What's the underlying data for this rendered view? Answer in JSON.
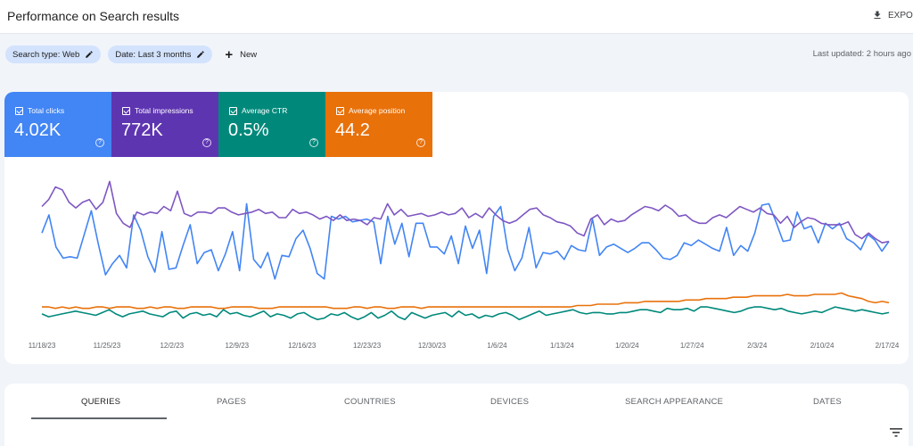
{
  "header": {
    "title": "Performance on Search results",
    "export_label": "EXPORT"
  },
  "filters": {
    "search_type": "Search type: Web",
    "date": "Date: Last 3 months",
    "new_label": "New",
    "last_updated": "Last updated: 2 hours ago"
  },
  "metrics": [
    {
      "label": "Total clicks",
      "value": "4.02K",
      "color": "#4285f4"
    },
    {
      "label": "Total impressions",
      "value": "772K",
      "color": "#673ab7"
    },
    {
      "label": "Average CTR",
      "value": "0.5%",
      "color": "#00897b"
    },
    {
      "label": "Average position",
      "value": "44.2",
      "color": "#e8710a"
    }
  ],
  "icons": {
    "edit": "edit-icon",
    "export": "download-icon",
    "plus": "plus-icon",
    "help": "help-icon",
    "checkbox": "checkbox-icon",
    "filter": "filter-icon"
  },
  "chart_data": {
    "type": "line",
    "x_ticks": [
      "11/18/23",
      "11/25/23",
      "12/2/23",
      "12/9/23",
      "12/16/23",
      "12/23/23",
      "12/30/23",
      "1/6/24",
      "1/13/24",
      "1/20/24",
      "1/27/24",
      "2/3/24",
      "2/10/24",
      "2/17/24"
    ],
    "grid": false,
    "legend": "top",
    "series": [
      {
        "name": "Total clicks",
        "color": "#4285f4",
        "values": [
          67,
          80,
          57,
          49,
          50,
          49,
          66,
          83,
          59,
          37,
          45,
          51,
          42,
          80,
          69,
          50,
          39,
          68,
          41,
          42,
          58,
          73,
          45,
          53,
          55,
          40,
          52,
          68,
          40,
          88,
          48,
          42,
          53,
          34,
          51,
          50,
          63,
          69,
          56,
          38,
          34,
          79,
          77,
          79,
          75,
          76,
          77,
          75,
          45,
          79,
          59,
          74,
          50,
          74,
          74,
          57,
          57,
          52,
          65,
          45,
          72,
          56,
          69,
          38,
          79,
          86,
          55,
          40,
          49,
          71,
          42,
          53,
          52,
          54,
          48,
          58,
          55,
          54,
          77,
          51,
          57,
          59,
          56,
          53,
          56,
          60,
          60,
          55,
          49,
          48,
          51,
          60,
          58,
          62,
          59,
          56,
          54,
          71,
          51,
          58,
          54,
          67,
          87,
          88,
          75,
          61,
          62,
          82,
          70,
          72,
          60,
          74,
          70,
          74,
          63,
          60,
          55,
          66,
          62,
          54,
          61
        ]
      },
      {
        "name": "Total impressions",
        "color": "#7e57c2",
        "values": [
          86,
          91,
          100,
          98,
          89,
          85,
          89,
          91,
          84,
          89,
          104,
          81,
          74,
          71,
          82,
          80,
          82,
          81,
          86,
          83,
          97,
          81,
          79,
          82,
          82,
          81,
          85,
          85,
          82,
          80,
          81,
          82,
          84,
          81,
          82,
          78,
          78,
          84,
          81,
          82,
          80,
          77,
          79,
          76,
          80,
          76,
          77,
          76,
          73,
          78,
          77,
          88,
          80,
          84,
          79,
          80,
          81,
          79,
          80,
          82,
          80,
          81,
          85,
          78,
          81,
          78,
          85,
          80,
          76,
          74,
          76,
          80,
          84,
          85,
          80,
          78,
          75,
          74,
          72,
          67,
          65,
          77,
          80,
          73,
          77,
          75,
          76,
          80,
          83,
          86,
          85,
          83,
          87,
          84,
          79,
          80,
          76,
          74,
          74,
          78,
          80,
          78,
          82,
          86,
          84,
          82,
          85,
          81,
          80,
          74,
          79,
          71,
          75,
          78,
          77,
          74,
          73,
          73,
          73,
          75,
          66,
          63,
          67,
          63,
          60,
          61
        ]
      },
      {
        "name": "Average CTR",
        "color": "#00897b",
        "values": [
          9,
          7,
          8,
          9,
          10,
          11,
          10,
          9,
          8,
          10,
          12,
          9,
          7,
          9,
          10,
          11,
          9,
          8,
          7,
          10,
          11,
          6,
          9,
          10,
          8,
          9,
          7,
          12,
          9,
          10,
          8,
          7,
          9,
          11,
          7,
          9,
          8,
          6,
          9,
          10,
          7,
          5,
          6,
          9,
          8,
          10,
          7,
          5,
          7,
          10,
          6,
          8,
          11,
          7,
          5,
          10,
          8,
          6,
          8,
          9,
          10,
          7,
          11,
          8,
          9,
          6,
          8,
          7,
          9,
          10,
          8,
          5,
          7,
          9,
          11,
          8,
          9,
          10,
          11,
          12,
          10,
          9,
          10,
          10,
          9,
          9,
          10,
          10,
          11,
          12,
          12,
          11,
          10,
          13,
          12,
          12,
          13,
          11,
          14,
          14,
          13,
          12,
          11,
          10,
          11,
          13,
          14,
          14,
          13,
          12,
          13,
          11,
          10,
          9,
          10,
          11,
          10,
          12,
          14,
          13,
          12,
          11,
          12,
          11,
          10,
          9,
          10
        ]
      },
      {
        "name": "Average position",
        "color": "#e8710a",
        "values": [
          14,
          14,
          13,
          14,
          13,
          14,
          13,
          13,
          14,
          14,
          13,
          14,
          14,
          14,
          13,
          13,
          14,
          13,
          14,
          14,
          13,
          13,
          14,
          14,
          14,
          14,
          13,
          13,
          14,
          14,
          14,
          14,
          13,
          13,
          13,
          14,
          14,
          14,
          14,
          14,
          14,
          14,
          14,
          13,
          13,
          13,
          14,
          14,
          13,
          14,
          14,
          13,
          13,
          14,
          14,
          14,
          13,
          14,
          14,
          14,
          14,
          14,
          14,
          14,
          14,
          14,
          14,
          14,
          14,
          14,
          14,
          14,
          14,
          14,
          14,
          14,
          14,
          14,
          14,
          15,
          15,
          15,
          16,
          16,
          16,
          16,
          17,
          17,
          17,
          18,
          18,
          18,
          18,
          18,
          18,
          19,
          19,
          19,
          20,
          20,
          20,
          20,
          21,
          21,
          21,
          22,
          22,
          22,
          22,
          22,
          23,
          22,
          22,
          22,
          23,
          23,
          23,
          23,
          24,
          22,
          21,
          20,
          18,
          17,
          18,
          17
        ]
      }
    ]
  },
  "tabs": [
    "QUERIES",
    "PAGES",
    "COUNTRIES",
    "DEVICES",
    "SEARCH APPEARANCE",
    "DATES"
  ]
}
